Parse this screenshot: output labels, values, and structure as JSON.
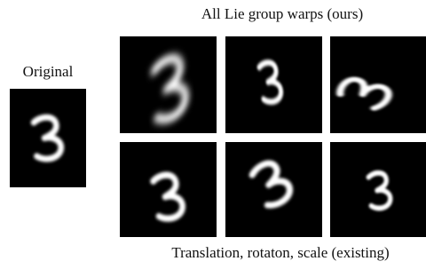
{
  "labels": {
    "original": "Original",
    "top_caption": "All Lie group warps (ours)",
    "bottom_caption": "Translation, rotaton, scale (existing)"
  }
}
